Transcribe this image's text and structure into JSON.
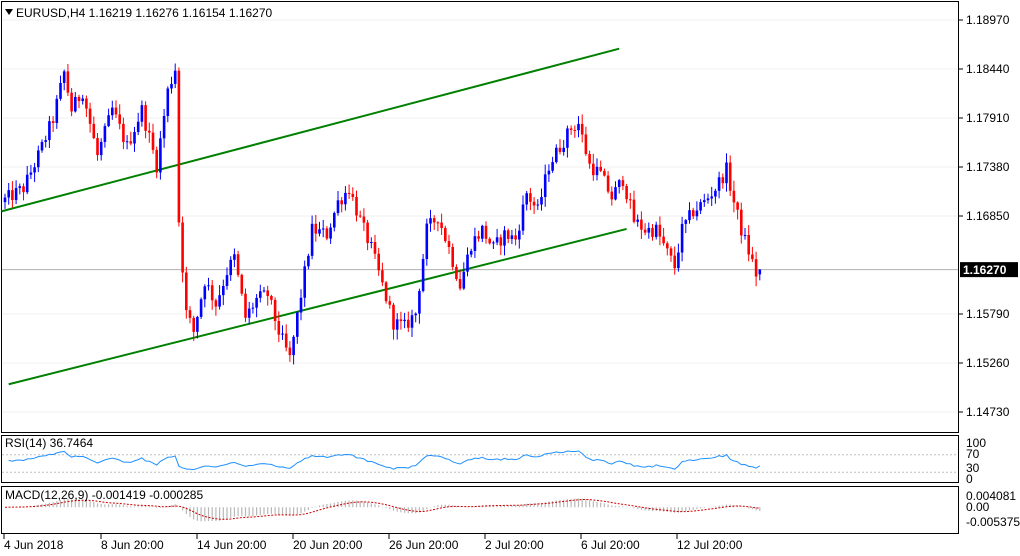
{
  "window": {
    "symbol_header": "EURUSD,H4  1.16219 1.16276 1.16154 1.16270",
    "current_price": "1.16270"
  },
  "colors": {
    "bull": "#0000ff",
    "bear": "#ff0000",
    "channel": "#008000",
    "rsi_line": "#1e90ff",
    "macd_signal": "#cc0000",
    "macd_histogram": "#b8b8b8",
    "price_line": "#b0b0b0",
    "price_badge": "#000000"
  },
  "icons": {
    "header_marker": "triangle-down-icon"
  },
  "chart_data": [
    {
      "type": "candlestick",
      "timeframe": "H4",
      "ylim": [
        1.145,
        1.192
      ],
      "y_ticks": [
        "1.18970",
        "1.18440",
        "1.17910",
        "1.17380",
        "1.16850",
        "1.15790",
        "1.15260",
        "1.14730"
      ],
      "x_ticks": [
        "4 Jun 2018",
        "8 Jun 20:00",
        "14 Jun 20:00",
        "20 Jun 20:00",
        "26 Jun 20:00",
        "2 Jul 20:00",
        "6 Jul 20:00",
        "12 Jul 20:00"
      ],
      "last": {
        "open": 1.16219,
        "high": 1.16276,
        "low": 1.16154,
        "close": 1.1627
      },
      "path_points": [
        [
          0,
          1.17
        ],
        [
          6,
          1.1715
        ],
        [
          10,
          1.175
        ],
        [
          14,
          1.179
        ],
        [
          17,
          1.184
        ],
        [
          19,
          1.18
        ],
        [
          22,
          1.182
        ],
        [
          26,
          1.175
        ],
        [
          30,
          1.18
        ],
        [
          34,
          1.176
        ],
        [
          38,
          1.18
        ],
        [
          42,
          1.174
        ],
        [
          45,
          1.182
        ],
        [
          47,
          1.1845
        ],
        [
          48,
          1.168
        ],
        [
          50,
          1.158
        ],
        [
          52,
          1.156
        ],
        [
          55,
          1.1615
        ],
        [
          58,
          1.159
        ],
        [
          61,
          1.1625
        ],
        [
          63,
          1.164
        ],
        [
          66,
          1.1575
        ],
        [
          69,
          1.1595
        ],
        [
          72,
          1.16
        ],
        [
          75,
          1.156
        ],
        [
          78,
          1.153
        ],
        [
          81,
          1.16
        ],
        [
          84,
          1.167
        ],
        [
          88,
          1.1665
        ],
        [
          91,
          1.17
        ],
        [
          94,
          1.1715
        ],
        [
          97,
          1.168
        ],
        [
          100,
          1.165
        ],
        [
          103,
          1.161
        ],
        [
          106,
          1.157
        ],
        [
          109,
          1.1565
        ],
        [
          112,
          1.158
        ],
        [
          115,
          1.167
        ],
        [
          118,
          1.1685
        ],
        [
          121,
          1.165
        ],
        [
          124,
          1.161
        ],
        [
          127,
          1.1655
        ],
        [
          130,
          1.167
        ],
        [
          133,
          1.165
        ],
        [
          136,
          1.1665
        ],
        [
          139,
          1.166
        ],
        [
          142,
          1.171
        ],
        [
          145,
          1.169
        ],
        [
          148,
          1.174
        ],
        [
          151,
          1.176
        ],
        [
          154,
          1.178
        ],
        [
          156,
          1.1785
        ],
        [
          159,
          1.174
        ],
        [
          162,
          1.173
        ],
        [
          165,
          1.1705
        ],
        [
          168,
          1.1725
        ],
        [
          171,
          1.168
        ],
        [
          174,
          1.167
        ],
        [
          177,
          1.167
        ],
        [
          180,
          1.1645
        ],
        [
          182,
          1.163
        ],
        [
          184,
          1.167
        ],
        [
          187,
          1.169
        ],
        [
          190,
          1.17
        ],
        [
          193,
          1.1715
        ],
        [
          196,
          1.1735
        ],
        [
          198,
          1.17
        ],
        [
          200,
          1.167
        ],
        [
          203,
          1.1635
        ],
        [
          204,
          1.1622
        ]
      ],
      "channel": {
        "upper": {
          "from": [
            -1,
            1.169
          ],
          "to": [
            166,
            1.1866
          ]
        },
        "lower": {
          "from": [
            1,
            1.1503
          ],
          "to": [
            168,
            1.1671
          ]
        }
      }
    },
    {
      "type": "line",
      "indicator": "RSI(14)",
      "label": "RSI(14) 36.7464",
      "value": 36.7464,
      "ylim": [
        0,
        100
      ],
      "levels": [
        30,
        70
      ],
      "y_ticks": [
        "100",
        "70",
        "30",
        "0"
      ]
    },
    {
      "type": "histogram",
      "indicator": "MACD(12,26,9)",
      "label": "MACD(12,26,9) -0.001419 -0.000285",
      "macd": -0.001419,
      "signal": -0.000285,
      "y_ticks": [
        "0.004081",
        "0.00",
        "-0.005375"
      ]
    }
  ]
}
